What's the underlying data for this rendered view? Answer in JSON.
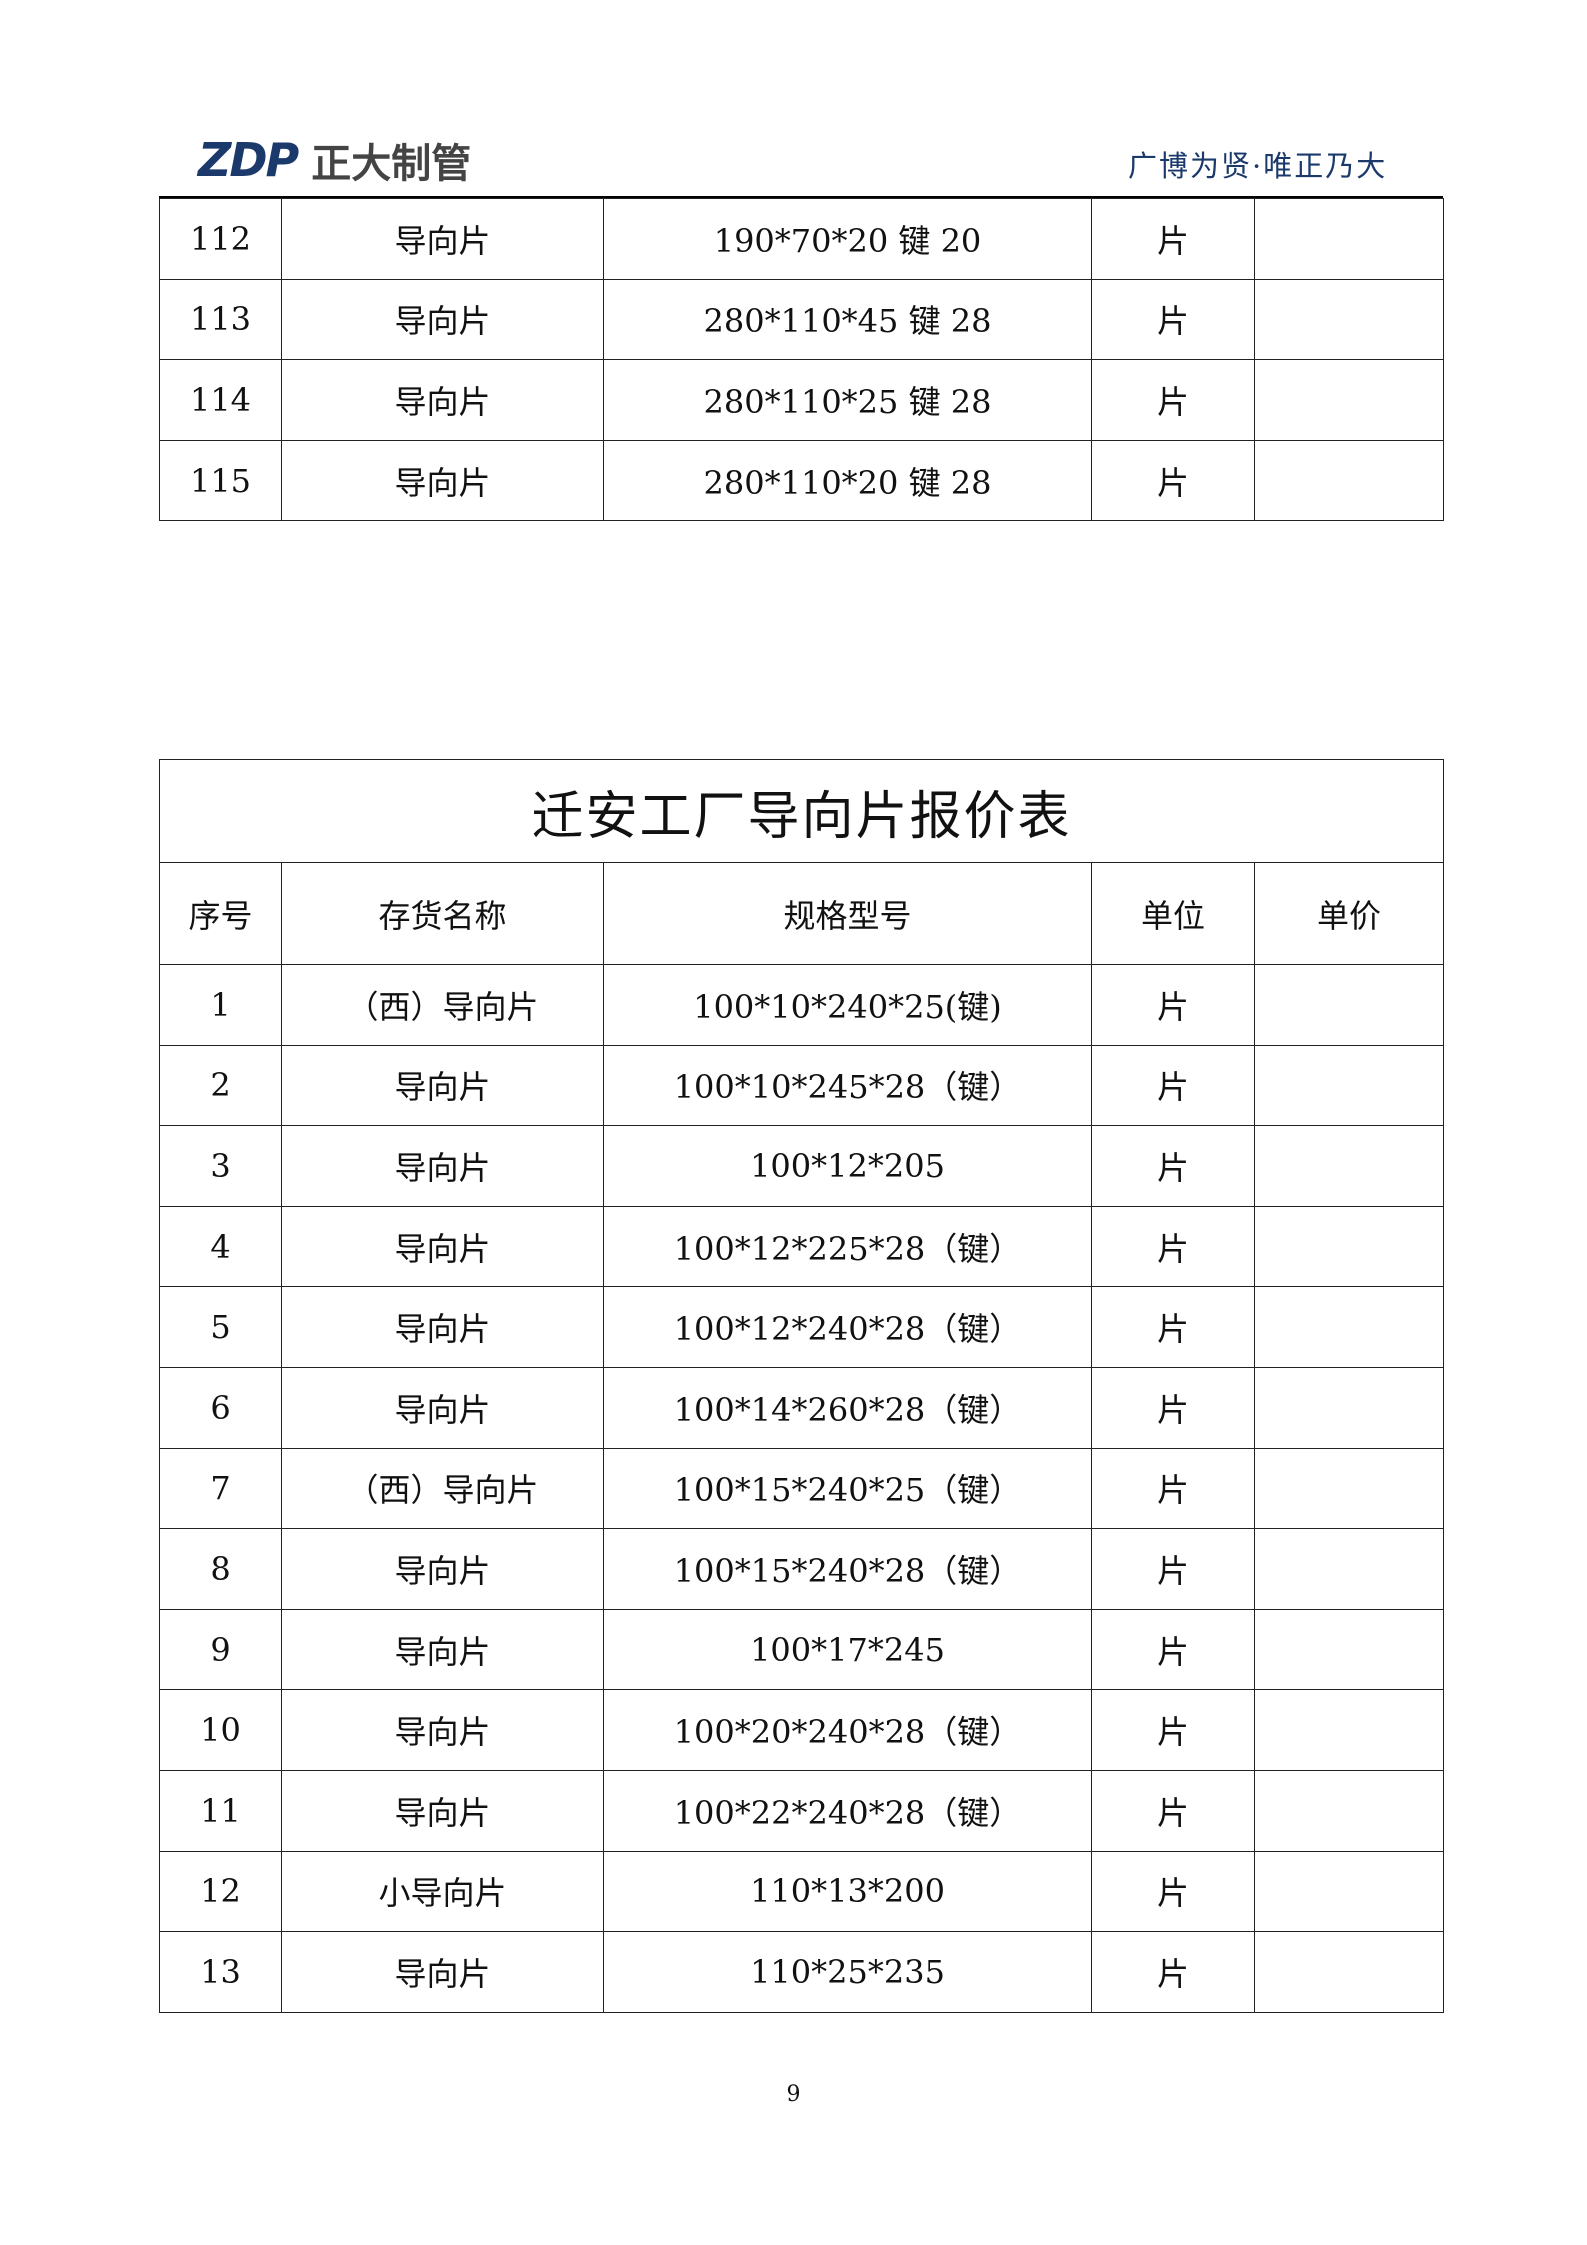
{
  "header": {
    "logo_mark": "ZDP",
    "logo_text": "正大制管",
    "slogan": "广博为贤·唯正乃大"
  },
  "table_top": {
    "rows": [
      [
        "112",
        "导向片",
        "190*70*20 键 20",
        "片",
        ""
      ],
      [
        "113",
        "导向片",
        "280*110*45 键 28",
        "片",
        ""
      ],
      [
        "114",
        "导向片",
        "280*110*25 键 28",
        "片",
        ""
      ],
      [
        "115",
        "导向片",
        "280*110*20 键 28",
        "片",
        ""
      ]
    ]
  },
  "table_main": {
    "title": "迁安工厂导向片报价表",
    "headers": [
      "序号",
      "存货名称",
      "规格型号",
      "单位",
      "单价"
    ],
    "rows": [
      [
        "1",
        "（西）导向片",
        "100*10*240*25(键)",
        "片",
        ""
      ],
      [
        "2",
        "导向片",
        "100*10*245*28（键）",
        "片",
        ""
      ],
      [
        "3",
        "导向片",
        "100*12*205",
        "片",
        ""
      ],
      [
        "4",
        "导向片",
        "100*12*225*28（键）",
        "片",
        ""
      ],
      [
        "5",
        "导向片",
        "100*12*240*28（键）",
        "片",
        ""
      ],
      [
        "6",
        "导向片",
        "100*14*260*28（键）",
        "片",
        ""
      ],
      [
        "7",
        "（西）导向片",
        "100*15*240*25（键）",
        "片",
        ""
      ],
      [
        "8",
        "导向片",
        "100*15*240*28（键）",
        "片",
        ""
      ],
      [
        "9",
        "导向片",
        "100*17*245",
        "片",
        ""
      ],
      [
        "10",
        "导向片",
        "100*20*240*28（键）",
        "片",
        ""
      ],
      [
        "11",
        "导向片",
        "100*22*240*28（键）",
        "片",
        ""
      ],
      [
        "12",
        "小导向片",
        "110*13*200",
        "片",
        ""
      ],
      [
        "13",
        "导向片",
        "110*25*235",
        "片",
        ""
      ]
    ]
  },
  "footer": {
    "page_number": "9"
  }
}
